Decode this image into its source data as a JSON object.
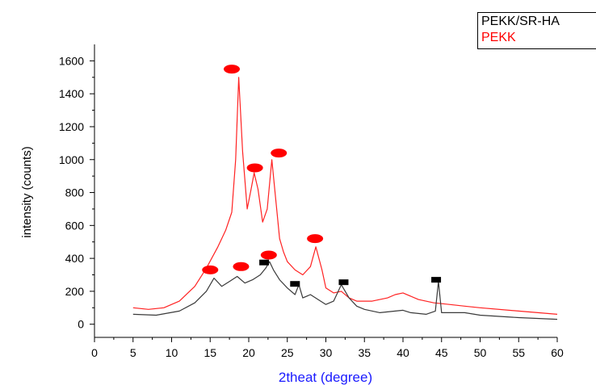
{
  "chart_data": {
    "type": "line",
    "xlabel": "2theat (degree)",
    "ylabel": "intensity (counts)",
    "xlim": [
      0,
      60
    ],
    "ylim": [
      -80,
      1700
    ],
    "xticks": [
      0,
      5,
      10,
      15,
      20,
      25,
      30,
      35,
      40,
      45,
      50,
      55,
      60
    ],
    "yticks": [
      0,
      200,
      400,
      600,
      800,
      1000,
      1200,
      1400,
      1600
    ],
    "grid": false,
    "legend_position": "top-right",
    "colors": {
      "axis": "#000000",
      "xlabel": "#1a1aff",
      "marker_ellipse": "#ff0000",
      "marker_square": "#000000"
    },
    "series": [
      {
        "name": "PEKK/SR-HA",
        "color": "#3a3a3a",
        "x": [
          5,
          8,
          11,
          13,
          14.5,
          15.5,
          16.5,
          17.5,
          18.5,
          19.5,
          20.5,
          21.5,
          22.2,
          22.7,
          23.2,
          24,
          25,
          26,
          26.5,
          27,
          28,
          29,
          30,
          31,
          32,
          33,
          34,
          35,
          37,
          39,
          40,
          41,
          43,
          44.2,
          44.6,
          45,
          46,
          48,
          50,
          55,
          60
        ],
        "values": [
          60,
          55,
          80,
          130,
          200,
          280,
          230,
          260,
          290,
          250,
          270,
          300,
          340,
          380,
          330,
          270,
          220,
          180,
          240,
          160,
          180,
          150,
          120,
          140,
          240,
          160,
          110,
          90,
          70,
          80,
          85,
          70,
          60,
          80,
          260,
          70,
          70,
          70,
          55,
          40,
          30
        ]
      },
      {
        "name": "PEKK",
        "color": "#ff2222",
        "x": [
          5,
          7,
          9,
          11,
          13,
          14.5,
          16,
          17,
          17.8,
          18.3,
          18.7,
          19.2,
          19.8,
          20.3,
          20.7,
          21.2,
          21.8,
          22.4,
          23,
          23.5,
          24,
          24.5,
          25,
          26,
          27,
          28,
          28.7,
          29.5,
          30,
          31,
          32,
          33,
          34,
          36,
          38,
          39,
          40,
          42,
          44,
          46,
          48,
          50,
          55,
          60
        ],
        "values": [
          100,
          90,
          100,
          140,
          230,
          340,
          470,
          570,
          680,
          1000,
          1500,
          1050,
          700,
          820,
          920,
          820,
          620,
          700,
          1000,
          760,
          520,
          440,
          380,
          330,
          300,
          350,
          470,
          330,
          220,
          190,
          200,
          160,
          140,
          140,
          160,
          180,
          190,
          150,
          130,
          120,
          110,
          100,
          80,
          60
        ]
      }
    ],
    "annotations": {
      "ellipse_markers": [
        [
          15,
          330
        ],
        [
          17.8,
          1550
        ],
        [
          19,
          350
        ],
        [
          20.8,
          950
        ],
        [
          22.6,
          420
        ],
        [
          23.9,
          1040
        ],
        [
          28.6,
          520
        ]
      ],
      "square_markers": [
        [
          22,
          375
        ],
        [
          26,
          245
        ],
        [
          32.3,
          255
        ],
        [
          44.3,
          270
        ]
      ]
    }
  }
}
